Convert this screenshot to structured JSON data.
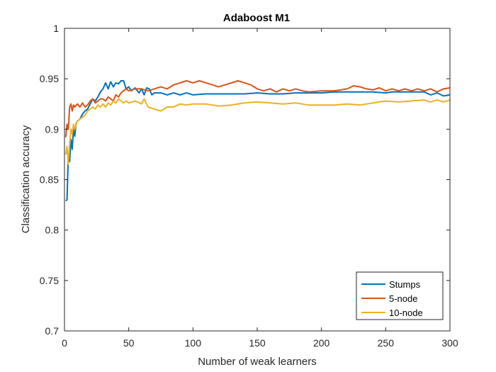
{
  "chart_data": {
    "type": "line",
    "title": "Adaboost M1",
    "xlabel": "Number of weak learners",
    "ylabel": "Classification accuracy",
    "xlim": [
      0,
      300
    ],
    "ylim": [
      0.7,
      1
    ],
    "xticks": [
      0,
      50,
      100,
      150,
      200,
      250,
      300
    ],
    "xtick_labels": [
      "0",
      "50",
      "100",
      "150",
      "200",
      "250",
      "300"
    ],
    "yticks": [
      0.7,
      0.75,
      0.8,
      0.85,
      0.9,
      0.95,
      1
    ],
    "ytick_labels": [
      "0.7",
      "0.75",
      "0.8",
      "0.85",
      "0.9",
      "0.95",
      "1"
    ],
    "grid": false,
    "legend_position": "bottom-right",
    "series": [
      {
        "name": "Stumps",
        "color": "#0072BD",
        "points": [
          [
            1,
            0.829
          ],
          [
            2,
            0.83
          ],
          [
            3,
            0.875
          ],
          [
            4,
            0.868
          ],
          [
            5,
            0.89
          ],
          [
            6,
            0.88
          ],
          [
            7,
            0.9
          ],
          [
            8,
            0.893
          ],
          [
            9,
            0.905
          ],
          [
            10,
            0.908
          ],
          [
            12,
            0.91
          ],
          [
            14,
            0.915
          ],
          [
            16,
            0.918
          ],
          [
            18,
            0.92
          ],
          [
            20,
            0.925
          ],
          [
            22,
            0.93
          ],
          [
            24,
            0.928
          ],
          [
            26,
            0.932
          ],
          [
            28,
            0.937
          ],
          [
            30,
            0.94
          ],
          [
            32,
            0.946
          ],
          [
            34,
            0.94
          ],
          [
            36,
            0.947
          ],
          [
            38,
            0.942
          ],
          [
            40,
            0.946
          ],
          [
            42,
            0.945
          ],
          [
            44,
            0.948
          ],
          [
            46,
            0.948
          ],
          [
            48,
            0.94
          ],
          [
            50,
            0.942
          ],
          [
            52,
            0.938
          ],
          [
            55,
            0.941
          ],
          [
            58,
            0.936
          ],
          [
            60,
            0.94
          ],
          [
            62,
            0.934
          ],
          [
            64,
            0.941
          ],
          [
            66,
            0.94
          ],
          [
            68,
            0.934
          ],
          [
            70,
            0.936
          ],
          [
            75,
            0.936
          ],
          [
            80,
            0.934
          ],
          [
            85,
            0.936
          ],
          [
            90,
            0.934
          ],
          [
            95,
            0.936
          ],
          [
            100,
            0.934
          ],
          [
            110,
            0.935
          ],
          [
            120,
            0.935
          ],
          [
            130,
            0.935
          ],
          [
            140,
            0.935
          ],
          [
            150,
            0.936
          ],
          [
            160,
            0.935
          ],
          [
            170,
            0.935
          ],
          [
            180,
            0.936
          ],
          [
            190,
            0.936
          ],
          [
            200,
            0.936
          ],
          [
            210,
            0.937
          ],
          [
            220,
            0.937
          ],
          [
            230,
            0.937
          ],
          [
            240,
            0.937
          ],
          [
            250,
            0.936
          ],
          [
            255,
            0.937
          ],
          [
            260,
            0.937
          ],
          [
            270,
            0.937
          ],
          [
            280,
            0.937
          ],
          [
            285,
            0.934
          ],
          [
            290,
            0.936
          ],
          [
            295,
            0.933
          ],
          [
            300,
            0.934
          ]
        ]
      },
      {
        "name": "5-node",
        "color": "#D95319",
        "points": [
          [
            1,
            0.892
          ],
          [
            2,
            0.905
          ],
          [
            3,
            0.9
          ],
          [
            4,
            0.922
          ],
          [
            5,
            0.925
          ],
          [
            6,
            0.918
          ],
          [
            7,
            0.924
          ],
          [
            8,
            0.922
          ],
          [
            10,
            0.925
          ],
          [
            12,
            0.922
          ],
          [
            14,
            0.926
          ],
          [
            16,
            0.922
          ],
          [
            18,
            0.924
          ],
          [
            20,
            0.928
          ],
          [
            22,
            0.93
          ],
          [
            24,
            0.926
          ],
          [
            26,
            0.928
          ],
          [
            28,
            0.93
          ],
          [
            30,
            0.93
          ],
          [
            32,
            0.928
          ],
          [
            34,
            0.932
          ],
          [
            36,
            0.93
          ],
          [
            38,
            0.928
          ],
          [
            40,
            0.934
          ],
          [
            42,
            0.932
          ],
          [
            44,
            0.936
          ],
          [
            46,
            0.938
          ],
          [
            48,
            0.94
          ],
          [
            50,
            0.938
          ],
          [
            55,
            0.94
          ],
          [
            60,
            0.94
          ],
          [
            65,
            0.938
          ],
          [
            70,
            0.94
          ],
          [
            75,
            0.942
          ],
          [
            80,
            0.94
          ],
          [
            85,
            0.944
          ],
          [
            90,
            0.946
          ],
          [
            95,
            0.948
          ],
          [
            100,
            0.946
          ],
          [
            105,
            0.948
          ],
          [
            110,
            0.946
          ],
          [
            115,
            0.944
          ],
          [
            120,
            0.942
          ],
          [
            125,
            0.944
          ],
          [
            130,
            0.946
          ],
          [
            135,
            0.948
          ],
          [
            140,
            0.946
          ],
          [
            145,
            0.944
          ],
          [
            150,
            0.94
          ],
          [
            155,
            0.938
          ],
          [
            160,
            0.94
          ],
          [
            165,
            0.937
          ],
          [
            170,
            0.94
          ],
          [
            175,
            0.938
          ],
          [
            180,
            0.94
          ],
          [
            185,
            0.938
          ],
          [
            190,
            0.937
          ],
          [
            200,
            0.938
          ],
          [
            210,
            0.938
          ],
          [
            220,
            0.94
          ],
          [
            225,
            0.943
          ],
          [
            230,
            0.942
          ],
          [
            235,
            0.94
          ],
          [
            240,
            0.939
          ],
          [
            245,
            0.941
          ],
          [
            250,
            0.938
          ],
          [
            255,
            0.94
          ],
          [
            260,
            0.938
          ],
          [
            265,
            0.94
          ],
          [
            270,
            0.938
          ],
          [
            275,
            0.94
          ],
          [
            280,
            0.938
          ],
          [
            285,
            0.94
          ],
          [
            290,
            0.937
          ],
          [
            295,
            0.94
          ],
          [
            300,
            0.941
          ]
        ]
      },
      {
        "name": "10-node",
        "color": "#EDB120",
        "points": [
          [
            1,
            0.875
          ],
          [
            2,
            0.883
          ],
          [
            3,
            0.865
          ],
          [
            4,
            0.885
          ],
          [
            5,
            0.9
          ],
          [
            6,
            0.895
          ],
          [
            7,
            0.905
          ],
          [
            8,
            0.9
          ],
          [
            10,
            0.908
          ],
          [
            12,
            0.91
          ],
          [
            14,
            0.912
          ],
          [
            16,
            0.914
          ],
          [
            18,
            0.918
          ],
          [
            20,
            0.92
          ],
          [
            22,
            0.922
          ],
          [
            24,
            0.92
          ],
          [
            26,
            0.924
          ],
          [
            28,
            0.922
          ],
          [
            30,
            0.925
          ],
          [
            32,
            0.922
          ],
          [
            34,
            0.926
          ],
          [
            36,
            0.924
          ],
          [
            38,
            0.928
          ],
          [
            40,
            0.926
          ],
          [
            42,
            0.93
          ],
          [
            44,
            0.928
          ],
          [
            46,
            0.926
          ],
          [
            48,
            0.928
          ],
          [
            50,
            0.926
          ],
          [
            55,
            0.928
          ],
          [
            60,
            0.925
          ],
          [
            62,
            0.93
          ],
          [
            65,
            0.922
          ],
          [
            70,
            0.92
          ],
          [
            75,
            0.918
          ],
          [
            80,
            0.922
          ],
          [
            85,
            0.922
          ],
          [
            90,
            0.925
          ],
          [
            95,
            0.924
          ],
          [
            100,
            0.925
          ],
          [
            110,
            0.925
          ],
          [
            120,
            0.923
          ],
          [
            130,
            0.924
          ],
          [
            140,
            0.926
          ],
          [
            150,
            0.927
          ],
          [
            160,
            0.926
          ],
          [
            170,
            0.925
          ],
          [
            180,
            0.926
          ],
          [
            190,
            0.924
          ],
          [
            200,
            0.924
          ],
          [
            210,
            0.924
          ],
          [
            220,
            0.925
          ],
          [
            230,
            0.924
          ],
          [
            240,
            0.926
          ],
          [
            250,
            0.928
          ],
          [
            260,
            0.927
          ],
          [
            270,
            0.928
          ],
          [
            280,
            0.929
          ],
          [
            285,
            0.927
          ],
          [
            290,
            0.929
          ],
          [
            295,
            0.927
          ],
          [
            300,
            0.929
          ]
        ]
      }
    ]
  }
}
